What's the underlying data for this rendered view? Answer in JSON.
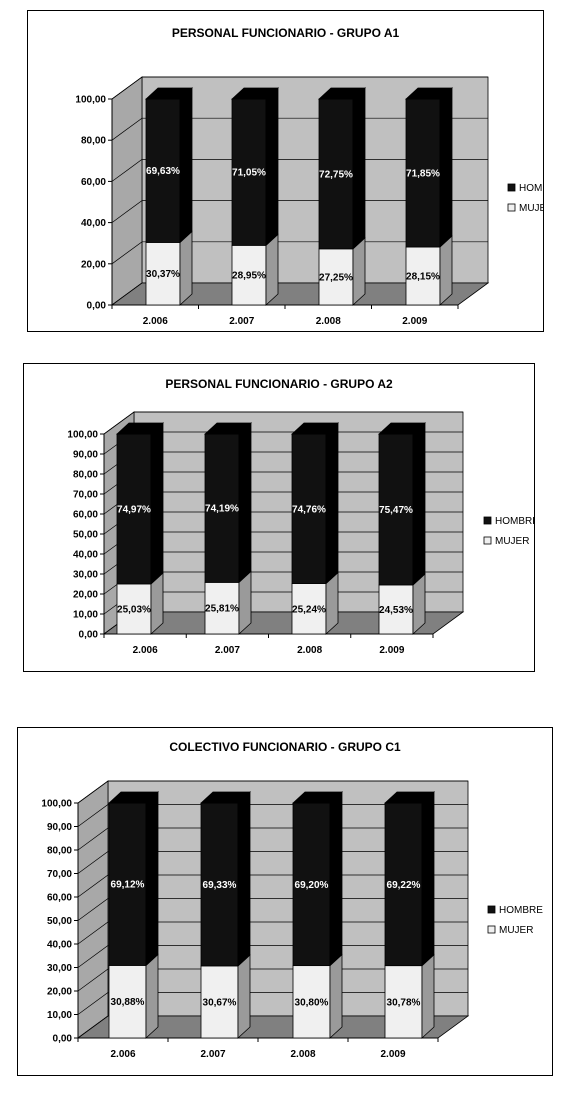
{
  "colors": {
    "hombre": "#111111",
    "mujer": "#f0f0f0",
    "wall": "#c0c0c0",
    "floor": "#808080"
  },
  "chart_data": [
    {
      "type": "bar",
      "stacked": true,
      "three_d": true,
      "title": "PERSONAL FUNCIONARIO - GRUPO A1",
      "categories": [
        "2.006",
        "2.007",
        "2.008",
        "2.009"
      ],
      "series": [
        {
          "name": "MUJER",
          "values": [
            30.37,
            28.95,
            27.25,
            28.15
          ],
          "labels": [
            "30,37%",
            "28,95%",
            "27,25%",
            "28,15%"
          ]
        },
        {
          "name": "HOMBRE",
          "values": [
            69.63,
            71.05,
            72.75,
            71.85
          ],
          "labels": [
            "69,63%",
            "71,05%",
            "72,75%",
            "71,85%"
          ]
        }
      ],
      "ylim": [
        0,
        100
      ],
      "yticks": [
        "0,00",
        "20,00",
        "40,00",
        "60,00",
        "80,00",
        "100,00"
      ],
      "grid": true,
      "legend": "right"
    },
    {
      "type": "bar",
      "stacked": true,
      "three_d": true,
      "title": "PERSONAL FUNCIONARIO - GRUPO A2",
      "categories": [
        "2.006",
        "2.007",
        "2.008",
        "2.009"
      ],
      "series": [
        {
          "name": "MUJER",
          "values": [
            25.03,
            25.81,
            25.24,
            24.53
          ],
          "labels": [
            "25,03%",
            "25,81%",
            "25,24%",
            "24,53%"
          ]
        },
        {
          "name": "HOMBRE",
          "values": [
            74.97,
            74.19,
            74.76,
            75.47
          ],
          "labels": [
            "74,97%",
            "74,19%",
            "74,76%",
            "75,47%"
          ]
        }
      ],
      "ylim": [
        0,
        100
      ],
      "yticks": [
        "0,00",
        "10,00",
        "20,00",
        "30,00",
        "40,00",
        "50,00",
        "60,00",
        "70,00",
        "80,00",
        "90,00",
        "100,00"
      ],
      "grid": true,
      "legend": "right"
    },
    {
      "type": "bar",
      "stacked": true,
      "three_d": true,
      "title": "COLECTIVO FUNCIONARIO - GRUPO C1",
      "categories": [
        "2.006",
        "2.007",
        "2.008",
        "2.009"
      ],
      "series": [
        {
          "name": "MUJER",
          "values": [
            30.88,
            30.67,
            30.8,
            30.78
          ],
          "labels": [
            "30,88%",
            "30,67%",
            "30,80%",
            "30,78%"
          ]
        },
        {
          "name": "HOMBRE",
          "values": [
            69.12,
            69.33,
            69.2,
            69.22
          ],
          "labels": [
            "69,12%",
            "69,33%",
            "69,20%",
            "69,22%"
          ]
        }
      ],
      "ylim": [
        0,
        100
      ],
      "yticks": [
        "0,00",
        "10,00",
        "20,00",
        "30,00",
        "40,00",
        "50,00",
        "60,00",
        "70,00",
        "80,00",
        "90,00",
        "100,00"
      ],
      "grid": true,
      "legend": "right"
    }
  ]
}
